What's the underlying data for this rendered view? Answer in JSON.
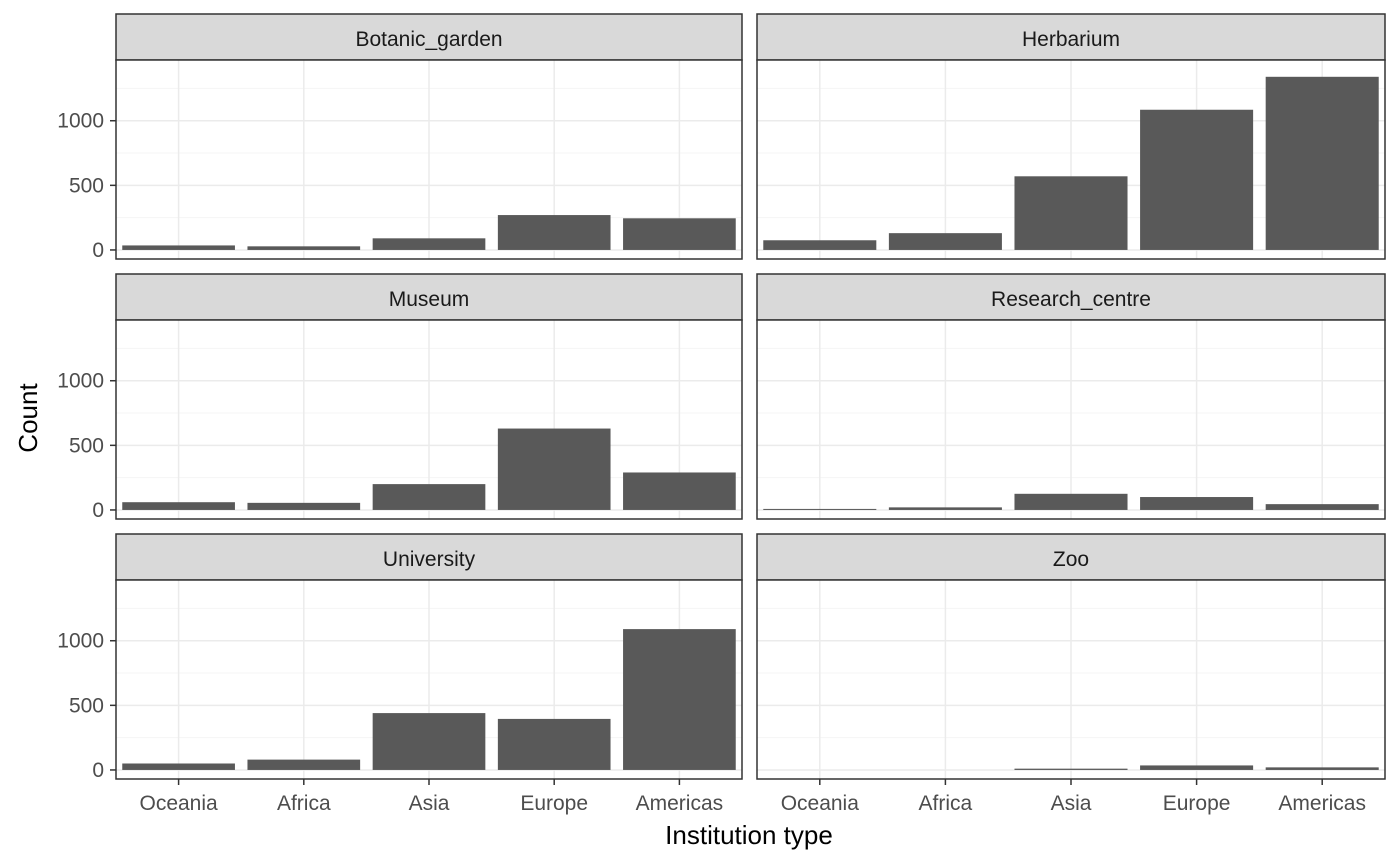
{
  "chart_data": {
    "type": "bar",
    "facet_layout": "3 rows x 2 columns",
    "xlabel": "Institution type",
    "ylabel": "Count",
    "categories": [
      "Oceania",
      "Africa",
      "Asia",
      "Europe",
      "Americas"
    ],
    "ylim": [
      0,
      1400
    ],
    "y_ticks": [
      0,
      500,
      1000
    ],
    "y_tick_labels": [
      "0",
      "500",
      "1000"
    ],
    "grid": true,
    "legend": "none",
    "colors": {
      "bar": "#595959",
      "strip_fill": "#d9d9d9",
      "panel_border": "#333333",
      "grid_major": "#ebebeb",
      "grid_minor": "#f5f5f5"
    },
    "facets": [
      {
        "name": "Botanic_garden",
        "values": [
          35,
          28,
          90,
          270,
          245
        ]
      },
      {
        "name": "Herbarium",
        "values": [
          75,
          130,
          570,
          1085,
          1340
        ]
      },
      {
        "name": "Museum",
        "values": [
          60,
          55,
          200,
          630,
          290
        ]
      },
      {
        "name": "Research_centre",
        "values": [
          8,
          20,
          125,
          100,
          45
        ]
      },
      {
        "name": "University",
        "values": [
          50,
          80,
          440,
          395,
          1090
        ]
      },
      {
        "name": "Zoo",
        "values": [
          0,
          0,
          10,
          35,
          20
        ]
      }
    ]
  }
}
